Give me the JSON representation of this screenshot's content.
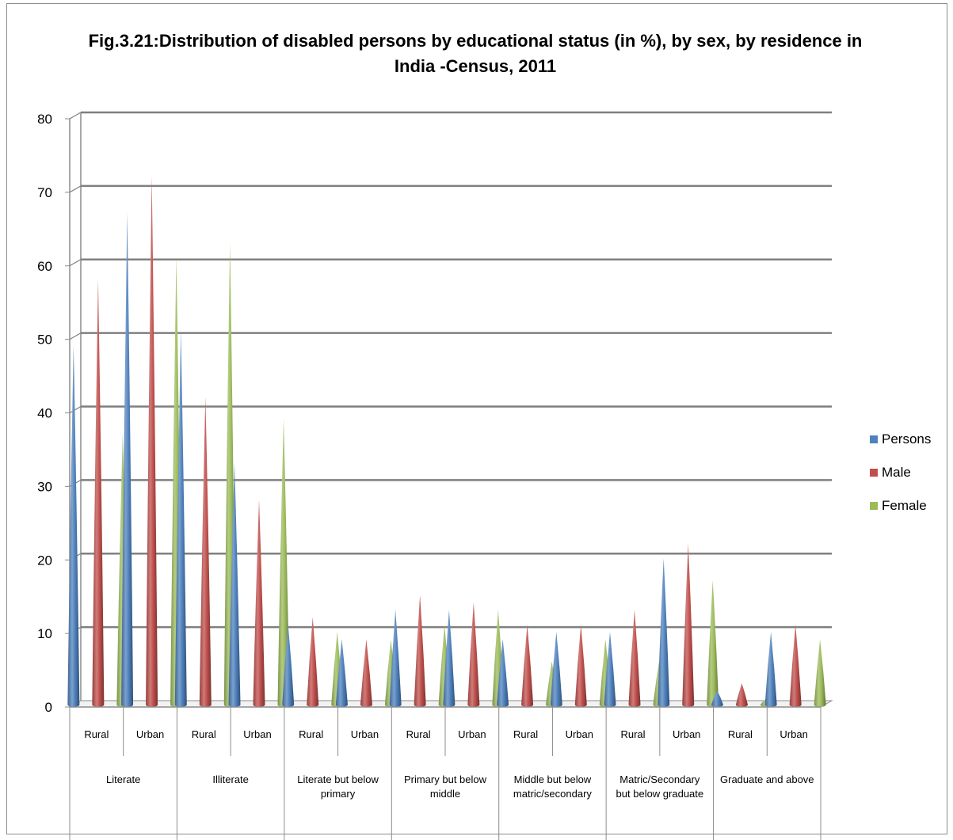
{
  "chart_data": {
    "type": "bar",
    "bar_shape": "cone",
    "title": "Fig.3.21:Distribution of disabled persons by educational status (in %), by sex, by residence in India -Census, 2011",
    "xlabel": "",
    "ylabel": "",
    "ylim": [
      0,
      80
    ],
    "yticks": [
      "0",
      "10",
      "20",
      "30",
      "40",
      "50",
      "60",
      "70",
      "80"
    ],
    "grid": true,
    "legend_position": "right",
    "groups": [
      "Literate",
      "Illiterate",
      "Literate but below primary",
      "Primary but below middle",
      "Middle but below matric/secondary",
      "Matric/Secondary but below graduate",
      "Graduate and above"
    ],
    "categories": [
      "Rural",
      "Urban",
      "Rural",
      "Urban",
      "Rural",
      "Urban",
      "Rural",
      "Urban",
      "Rural",
      "Urban",
      "Rural",
      "Urban",
      "Rural",
      "Urban"
    ],
    "series": [
      {
        "name": "Persons",
        "color": "#4f81bd",
        "values": [
          49,
          67,
          51,
          33,
          11,
          9,
          13,
          13,
          9,
          10,
          10,
          20,
          2,
          10
        ]
      },
      {
        "name": "Male",
        "color": "#c0504d",
        "values": [
          58,
          72,
          42,
          28,
          12,
          9,
          15,
          14,
          11,
          11,
          13,
          22,
          3,
          11
        ]
      },
      {
        "name": "Female",
        "color": "#9bbb59",
        "values": [
          37,
          61,
          63,
          39,
          10,
          9,
          11,
          13,
          6,
          9,
          6,
          17,
          1,
          9
        ]
      }
    ]
  }
}
